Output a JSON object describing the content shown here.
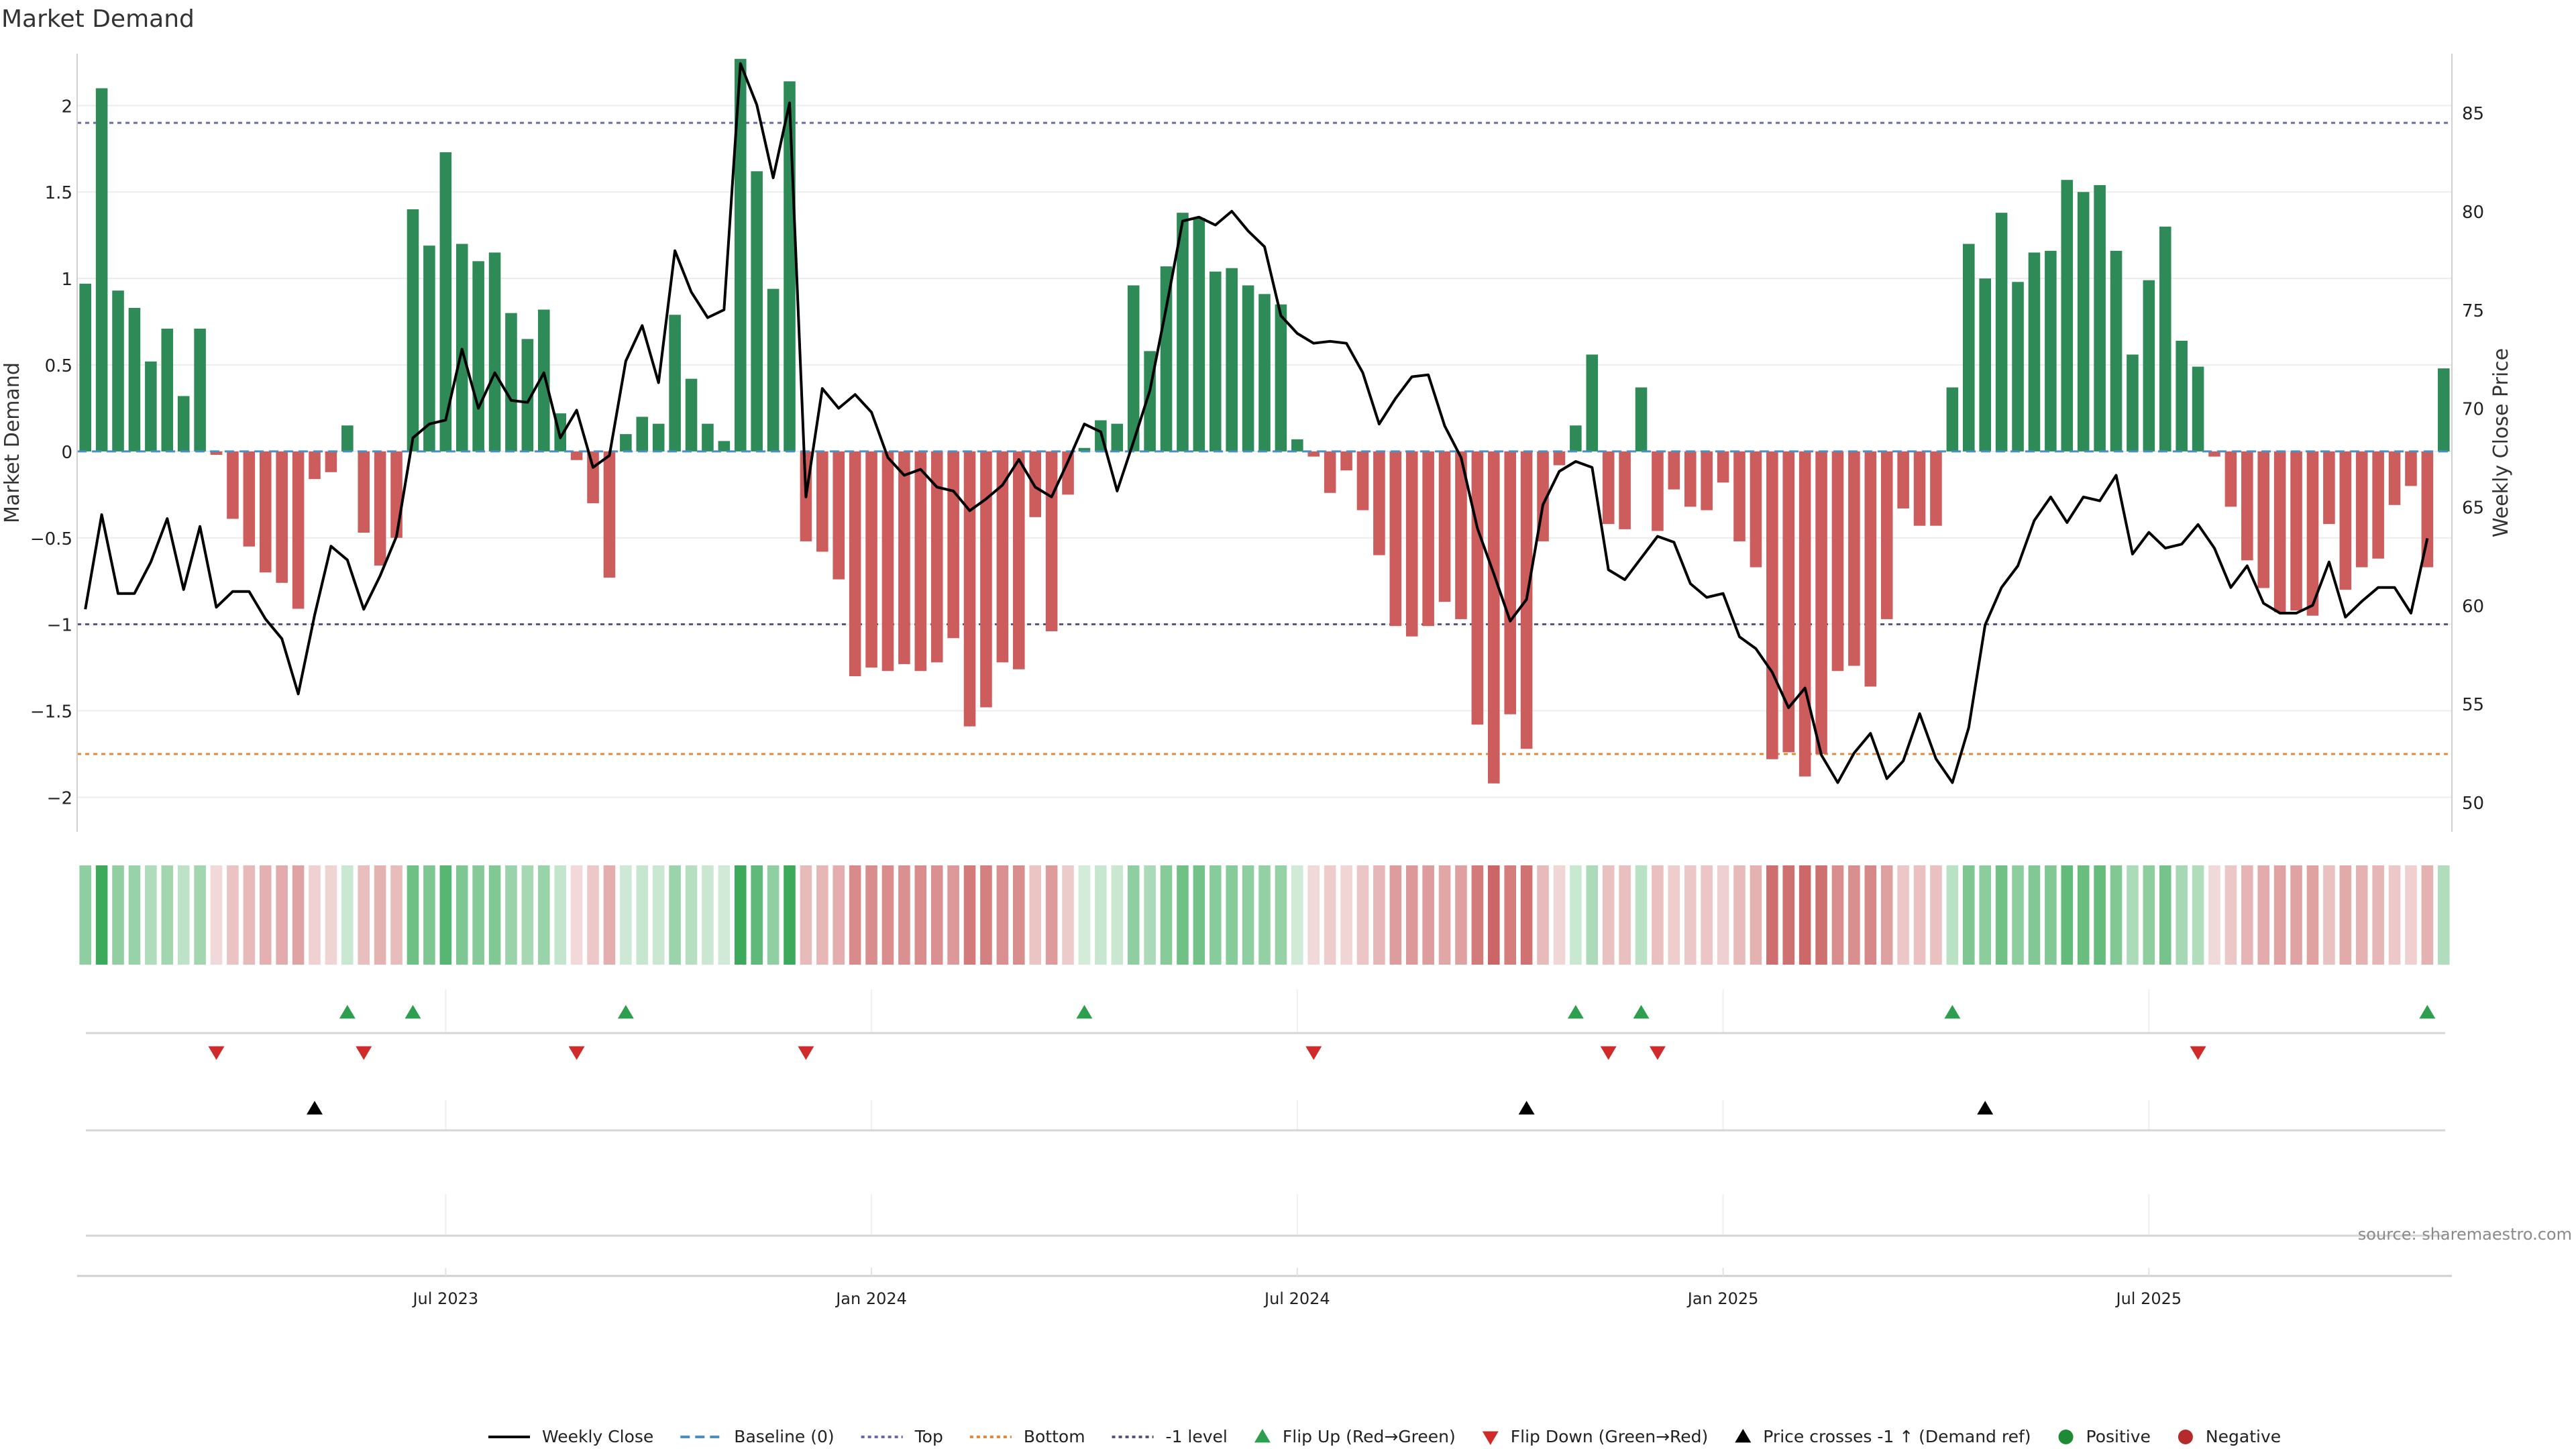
{
  "chart_data": {
    "type": "bar",
    "title": "Market Demand",
    "ylabel_left": "Market Demand",
    "ylabel_right": "Weekly Close Price",
    "source": "source: sharemaestro.com",
    "ylim_left": [
      -2.2,
      2.3
    ],
    "ylim_right": [
      48.5,
      88
    ],
    "left_ticks": [
      {
        "value": 2,
        "label": "2"
      },
      {
        "value": 1.5,
        "label": "1.5"
      },
      {
        "value": 1,
        "label": "1"
      },
      {
        "value": 0.5,
        "label": "0.5"
      },
      {
        "value": 0,
        "label": "0"
      },
      {
        "value": -0.5,
        "label": "−0.5"
      },
      {
        "value": -1,
        "label": "−1"
      },
      {
        "value": -1.5,
        "label": "−1.5"
      },
      {
        "value": -2,
        "label": "−2"
      }
    ],
    "right_ticks": [
      {
        "value": 85,
        "label": "85"
      },
      {
        "value": 80,
        "label": "80"
      },
      {
        "value": 75,
        "label": "75"
      },
      {
        "value": 70,
        "label": "70"
      },
      {
        "value": 65,
        "label": "65"
      },
      {
        "value": 60,
        "label": "60"
      },
      {
        "value": 55,
        "label": "55"
      },
      {
        "value": 50,
        "label": "50"
      }
    ],
    "x_ticks": [
      {
        "index": 22,
        "label": "Jul 2023"
      },
      {
        "index": 48,
        "label": "Jan 2024"
      },
      {
        "index": 74,
        "label": "Jul 2024"
      },
      {
        "index": 100,
        "label": "Jan 2025"
      },
      {
        "index": 126,
        "label": "Jul 2025"
      }
    ],
    "reference_lines": [
      {
        "name": "Top",
        "value": 1.9,
        "color": "#6a6aa8"
      },
      {
        "name": "Bottom",
        "value": -1.75,
        "color": "#e08a3a"
      },
      {
        "name": "-1 level",
        "value": -1,
        "color": "#55557a"
      }
    ],
    "demand": [
      0.97,
      2.1,
      0.93,
      0.83,
      0.52,
      0.71,
      0.32,
      0.71,
      -0.02,
      -0.39,
      -0.55,
      -0.7,
      -0.76,
      -0.91,
      -0.16,
      -0.12,
      0.15,
      -0.47,
      -0.66,
      -0.5,
      1.4,
      1.19,
      1.73,
      1.2,
      1.1,
      1.15,
      0.8,
      0.65,
      0.82,
      0.22,
      -0.05,
      -0.3,
      -0.73,
      0.1,
      0.2,
      0.16,
      0.79,
      0.42,
      0.16,
      0.06,
      2.27,
      1.62,
      0.94,
      2.14,
      -0.52,
      -0.58,
      -0.74,
      -1.3,
      -1.25,
      -1.27,
      -1.23,
      -1.27,
      -1.22,
      -1.08,
      -1.59,
      -1.48,
      -1.22,
      -1.26,
      -0.38,
      -1.04,
      -0.25,
      0.02,
      0.18,
      0.16,
      0.96,
      0.58,
      1.07,
      1.38,
      1.35,
      1.04,
      1.06,
      0.96,
      0.91,
      0.85,
      0.07,
      -0.03,
      -0.24,
      -0.11,
      -0.34,
      -0.6,
      -1.01,
      -1.07,
      -1.01,
      -0.87,
      -0.97,
      -1.58,
      -1.92,
      -1.52,
      -1.72,
      -0.52,
      -0.08,
      0.15,
      0.56,
      -0.42,
      -0.45,
      0.37,
      -0.46,
      -0.22,
      -0.32,
      -0.34,
      -0.18,
      -0.52,
      -0.67,
      -1.78,
      -1.74,
      -1.88,
      -1.75,
      -1.27,
      -1.24,
      -1.36,
      -0.97,
      -0.33,
      -0.43,
      -0.43,
      0.37,
      1.2,
      1.0,
      1.38,
      0.98,
      1.15,
      1.16,
      1.57,
      1.5,
      1.54,
      1.16,
      0.56,
      0.99,
      1.3,
      0.64,
      0.49,
      -0.03,
      -0.32,
      -0.63,
      -0.79,
      -0.93,
      -0.92,
      -0.95,
      -0.42,
      -0.8,
      -0.67,
      -0.62,
      -0.31,
      -0.2,
      -0.67,
      0.48
    ],
    "price": [
      59.8,
      64.6,
      60.6,
      60.6,
      62.2,
      64.4,
      60.8,
      64.0,
      59.9,
      60.7,
      60.7,
      59.3,
      58.3,
      55.5,
      59.5,
      63.0,
      62.3,
      59.8,
      61.5,
      63.5,
      68.5,
      69.2,
      69.4,
      73.0,
      70.0,
      71.8,
      70.4,
      70.3,
      71.8,
      68.5,
      69.9,
      67.0,
      67.6,
      72.4,
      74.2,
      71.3,
      78.0,
      75.9,
      74.6,
      75.0,
      87.5,
      85.4,
      81.7,
      85.5,
      65.5,
      71.0,
      70.0,
      70.7,
      69.8,
      67.5,
      66.6,
      66.9,
      66.0,
      65.8,
      64.8,
      65.4,
      66.1,
      67.4,
      66.0,
      65.5,
      67.3,
      69.2,
      68.8,
      65.8,
      68.3,
      70.9,
      75.1,
      79.5,
      79.7,
      79.3,
      80.0,
      79.0,
      78.2,
      74.7,
      73.8,
      73.3,
      73.4,
      73.3,
      71.8,
      69.2,
      70.5,
      71.6,
      71.7,
      69.1,
      67.5,
      63.9,
      61.6,
      59.2,
      60.3,
      65.1,
      66.8,
      67.3,
      67.0,
      61.8,
      61.3,
      62.4,
      63.5,
      63.2,
      61.1,
      60.4,
      60.6,
      58.4,
      57.8,
      56.6,
      54.8,
      55.8,
      52.4,
      51.0,
      52.5,
      53.5,
      51.2,
      52.1,
      54.5,
      52.2,
      51.0,
      53.8,
      59.0,
      60.9,
      62.0,
      64.3,
      65.5,
      64.2,
      65.5,
      65.3,
      66.6,
      62.6,
      63.7,
      62.9,
      63.1,
      64.1,
      62.9,
      60.9,
      62.0,
      60.1,
      59.6,
      59.6,
      60.0,
      62.2,
      59.4,
      60.2,
      60.9,
      60.9,
      59.6,
      63.4
    ],
    "flip_up": [
      16,
      20,
      33,
      61,
      91,
      95,
      114,
      143
    ],
    "flip_down": [
      8,
      17,
      30,
      44,
      75,
      93,
      96,
      129
    ],
    "price_crosses": [
      14,
      88,
      116
    ],
    "legend": [
      {
        "label": "Weekly Close",
        "kind": "line",
        "color": "#000000"
      },
      {
        "label": "Baseline (0)",
        "kind": "dash",
        "color": "#4a8fc4"
      },
      {
        "label": "Top",
        "kind": "dot",
        "color": "#6a6aa8"
      },
      {
        "label": "Bottom",
        "kind": "dot",
        "color": "#e08a3a"
      },
      {
        "label": "-1 level",
        "kind": "dot",
        "color": "#55557a"
      },
      {
        "label": "Flip Up (Red→Green)",
        "kind": "tri-up",
        "color": "#2e9e4f"
      },
      {
        "label": "Flip Down (Green→Red)",
        "kind": "tri-down",
        "color": "#d02a2a"
      },
      {
        "label": "Price crosses -1 ↑ (Demand ref)",
        "kind": "tri-up",
        "color": "#000000"
      },
      {
        "label": "Positive",
        "kind": "circle",
        "color": "#1e8a36"
      },
      {
        "label": "Negative",
        "kind": "circle",
        "color": "#b52a2a"
      }
    ],
    "colors": {
      "positive": "#2e8b57",
      "negative": "#cd5c5c"
    }
  }
}
